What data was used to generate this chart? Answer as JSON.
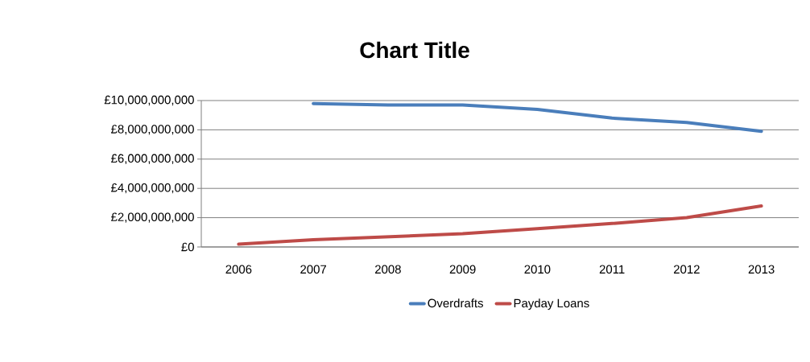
{
  "chart_data": {
    "type": "line",
    "title": "Chart Title",
    "categories": [
      "2006",
      "2007",
      "2008",
      "2009",
      "2010",
      "2011",
      "2012",
      "2013"
    ],
    "series": [
      {
        "name": "Overdrafts",
        "color": "#4a7ebb",
        "values": [
          null,
          9800000000,
          9700000000,
          9700000000,
          9400000000,
          8800000000,
          8500000000,
          7900000000
        ]
      },
      {
        "name": "Payday Loans",
        "color": "#be4b48",
        "values": [
          190000000,
          500000000,
          700000000,
          900000000,
          1250000000,
          1600000000,
          2000000000,
          2800000000
        ]
      }
    ],
    "ylim": [
      0,
      10000000000
    ],
    "yticks": [
      {
        "value": 0,
        "label": "£0"
      },
      {
        "value": 2000000000,
        "label": "£2,000,000,000"
      },
      {
        "value": 4000000000,
        "label": "£4,000,000,000"
      },
      {
        "value": 6000000000,
        "label": "£6,000,000,000"
      },
      {
        "value": 8000000000,
        "label": "£8,000,000,000"
      },
      {
        "value": 10000000000,
        "label": "£10,000,000,000"
      }
    ],
    "grid": "y",
    "legend": "bottom",
    "marker": "none",
    "line_style": "solid"
  }
}
